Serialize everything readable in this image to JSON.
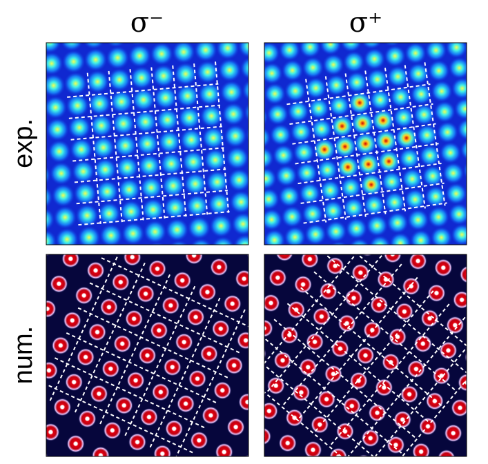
{
  "columns": [
    "σ⁻",
    "σ⁺"
  ],
  "rows": [
    "exp.",
    "num."
  ]
}
